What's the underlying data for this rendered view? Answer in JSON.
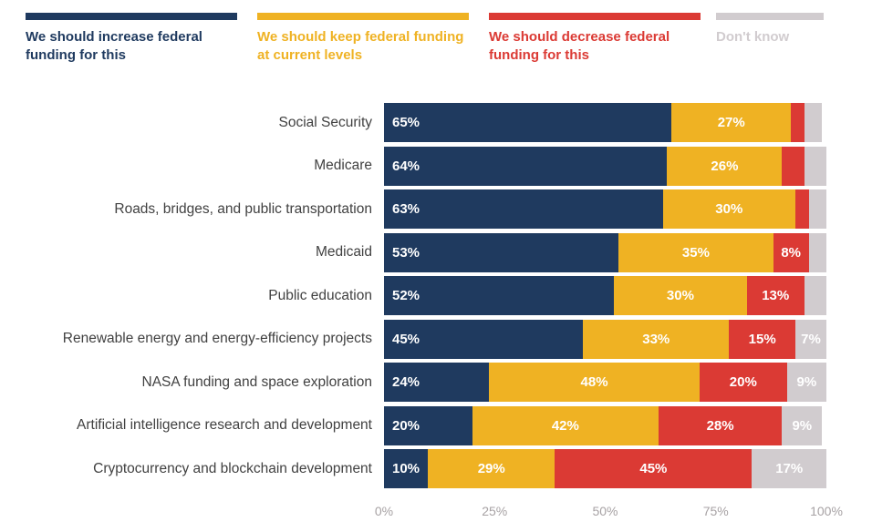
{
  "legend": [
    {
      "label": "We should increase federal funding for this",
      "color": "#1F3A5F"
    },
    {
      "label": "We should keep federal funding at current levels",
      "color": "#EFB223"
    },
    {
      "label": "We should decrease federal funding for this",
      "color": "#DB3A34"
    },
    {
      "label": "Don't know",
      "color": "#D1CCCF"
    }
  ],
  "chart_data": {
    "type": "bar",
    "orientation": "horizontal",
    "stacked": true,
    "grid": false,
    "legend_position": "top",
    "xlim": [
      0,
      100
    ],
    "x_ticks": [
      "0%",
      "25%",
      "50%",
      "75%",
      "100%"
    ],
    "categories": [
      "Social Security",
      "Medicare",
      "Roads, bridges, and public transportation",
      "Medicaid",
      "Public education",
      "Renewable energy and energy-efficiency projects",
      "NASA funding and space exploration",
      "Artificial intelligence research and development",
      "Cryptocurrency and blockchain development"
    ],
    "series": [
      {
        "name": "We should increase federal funding for this",
        "key": "increase",
        "color": "#1F3A5F",
        "values": [
          65,
          64,
          63,
          53,
          52,
          45,
          24,
          20,
          10
        ],
        "labels": [
          "65%",
          "64%",
          "63%",
          "53%",
          "52%",
          "45%",
          "24%",
          "20%",
          "10%"
        ]
      },
      {
        "name": "We should keep federal funding at current levels",
        "key": "keep",
        "color": "#EFB223",
        "values": [
          27,
          26,
          30,
          35,
          30,
          33,
          48,
          42,
          29
        ],
        "labels": [
          "27%",
          "26%",
          "30%",
          "35%",
          "30%",
          "33%",
          "48%",
          "42%",
          "29%"
        ]
      },
      {
        "name": "We should decrease federal funding for this",
        "key": "decrease",
        "color": "#DB3A34",
        "values": [
          3,
          5,
          3,
          8,
          13,
          15,
          20,
          28,
          45
        ],
        "labels": [
          "",
          "",
          "",
          "8%",
          "13%",
          "15%",
          "20%",
          "28%",
          "45%"
        ]
      },
      {
        "name": "Don't know",
        "key": "dont-know",
        "color": "#D1CCCF",
        "values": [
          4,
          5,
          4,
          4,
          5,
          7,
          9,
          9,
          17
        ],
        "labels": [
          "",
          "",
          "",
          "",
          "",
          "7%",
          "9%",
          "9%",
          "17%"
        ]
      }
    ]
  }
}
